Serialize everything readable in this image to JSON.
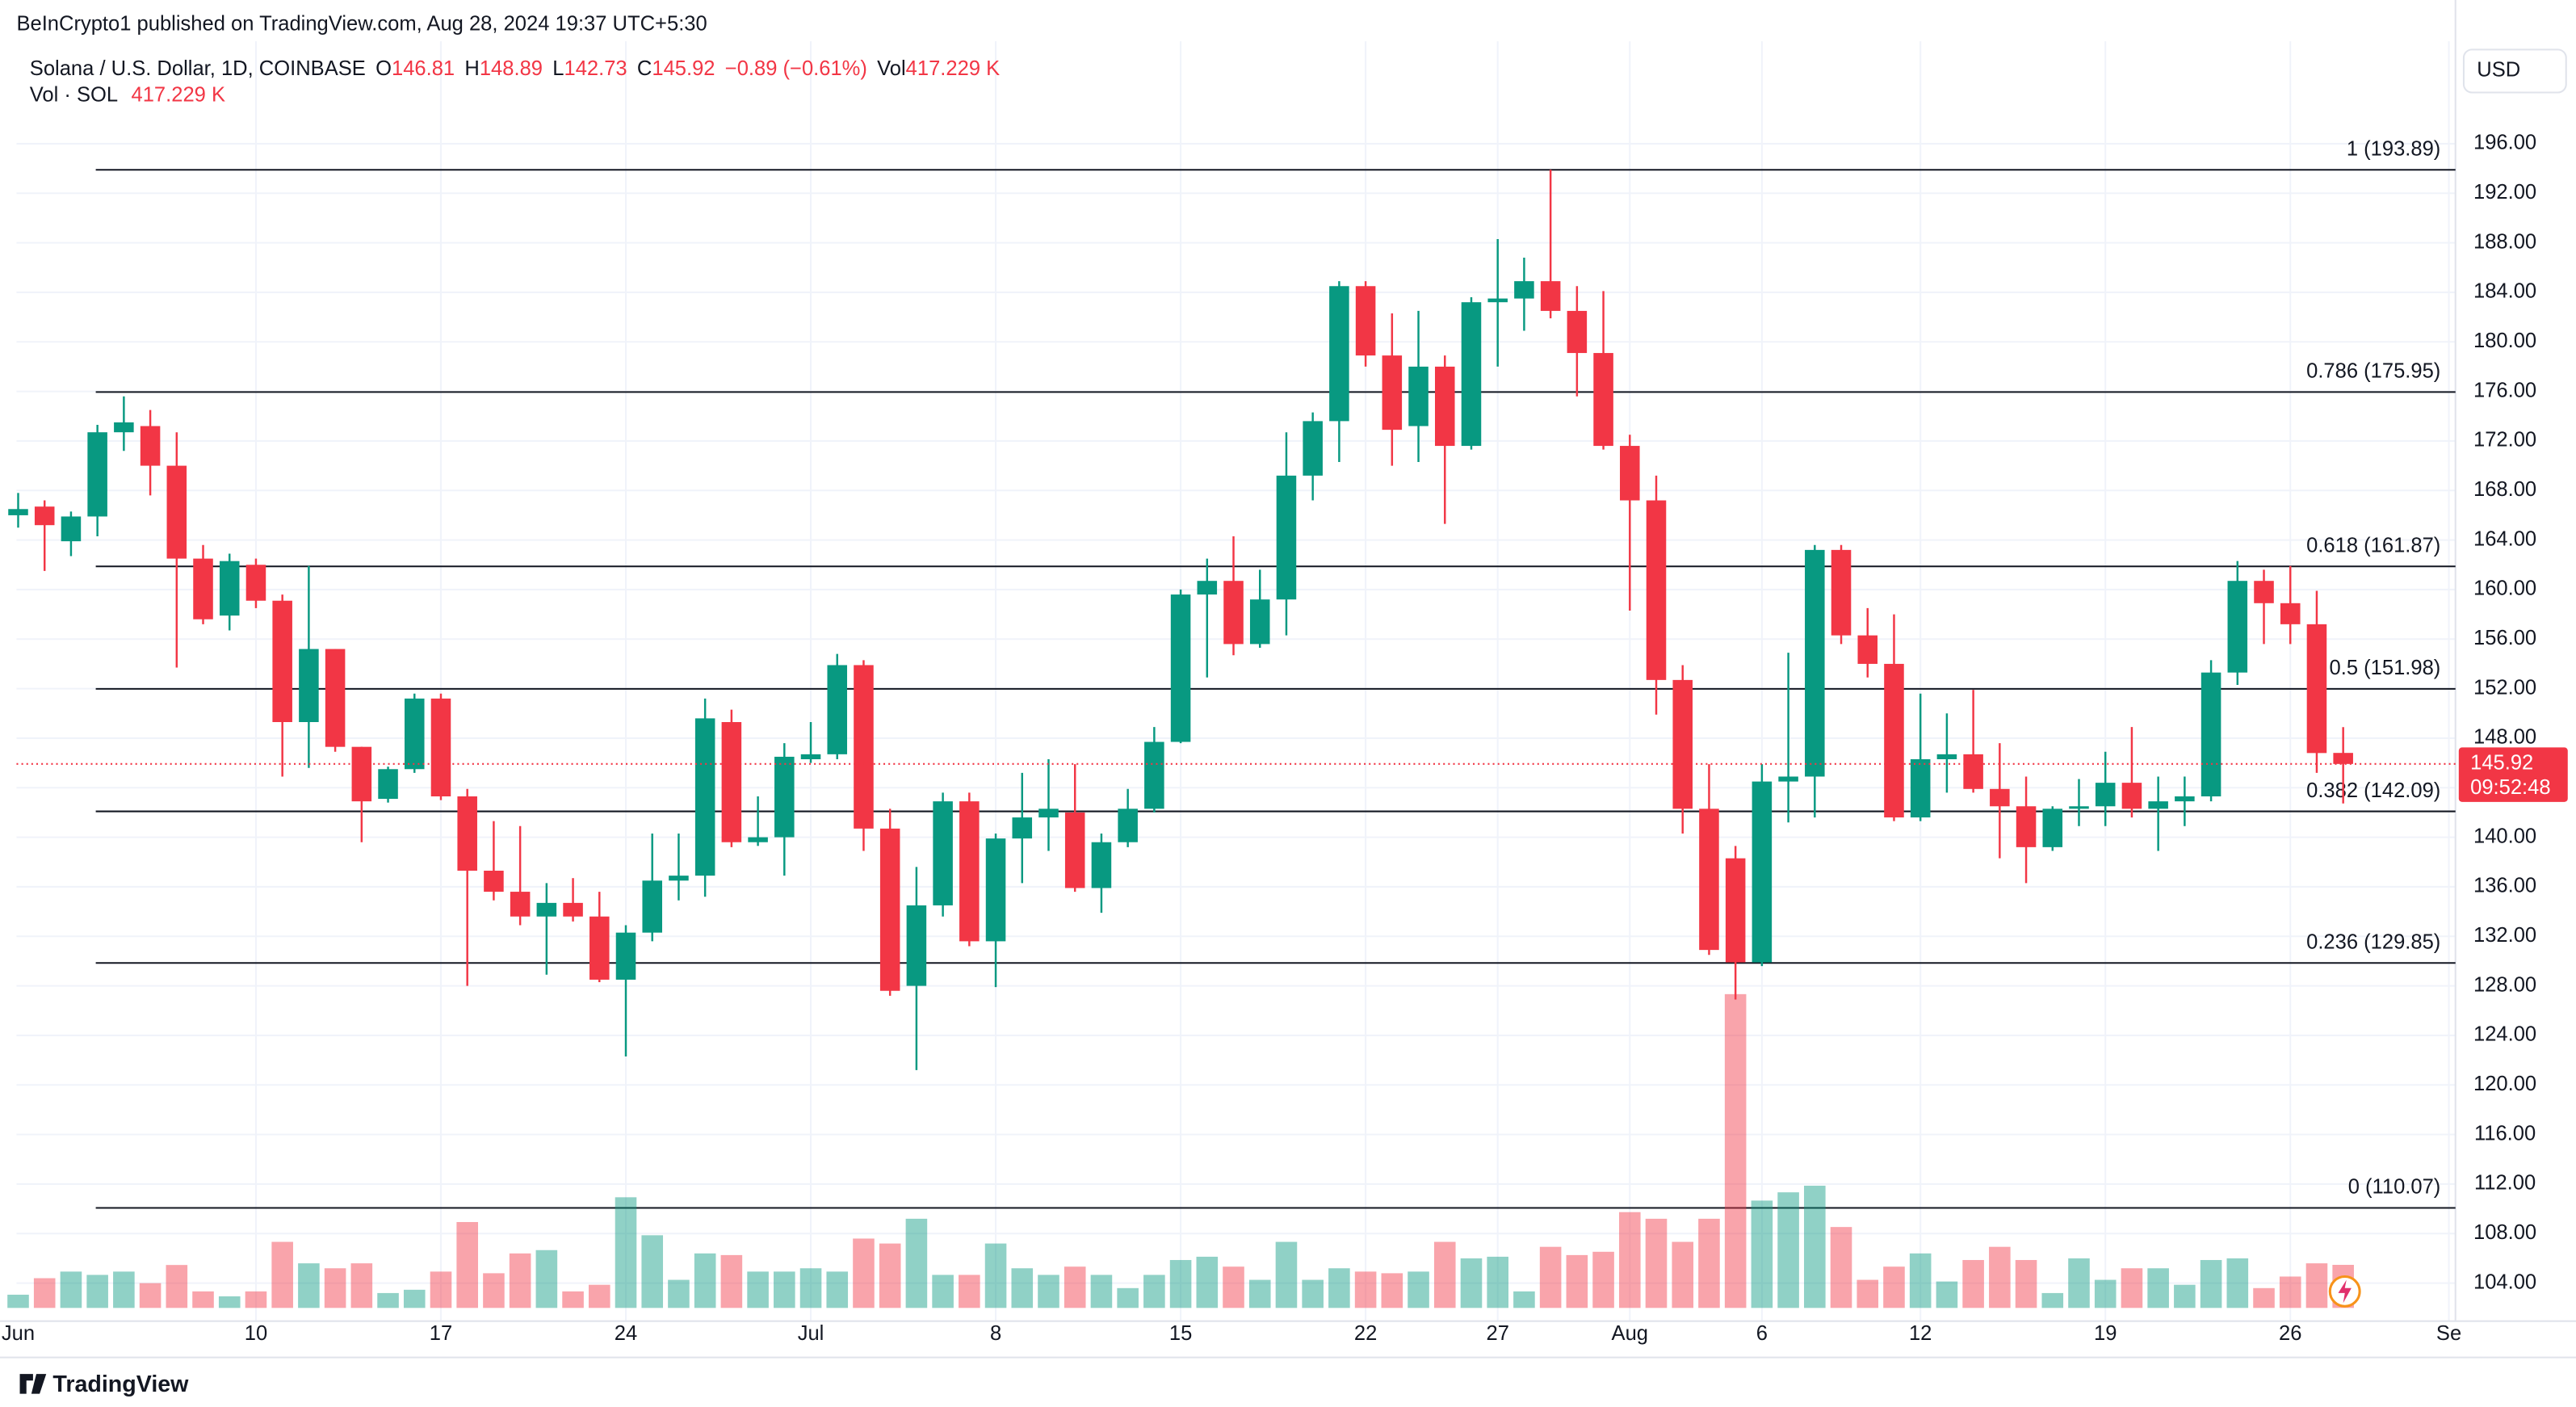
{
  "header": {
    "publisher": "BeInCrypto1 published on TradingView.com, Aug 28, 2024 19:37 UTC+5:30",
    "symbol": "Solana / U.S. Dollar, 1D, COINBASE",
    "o": "O",
    "h": "H",
    "l": "L",
    "c": "C",
    "change": "−0.89 (−0.61%)",
    "vol": "Vol",
    "vol_value": "417.229 K",
    "vol_row": "Vol · SOL",
    "vol_row_value": "417.229 K"
  },
  "currency": "USD",
  "countdown": "09:52:48",
  "footer": "TradingView",
  "chart_data": {
    "type": "candlestick",
    "up_color": "#089981",
    "down_color": "#f23645",
    "grid": true,
    "categories": [
      "Jun",
      null,
      null,
      null,
      null,
      null,
      null,
      null,
      null,
      "10",
      null,
      null,
      null,
      null,
      null,
      null,
      "17",
      null,
      null,
      null,
      null,
      null,
      null,
      "24",
      null,
      null,
      null,
      null,
      null,
      null,
      "Jul",
      null,
      null,
      null,
      null,
      null,
      null,
      "8",
      null,
      null,
      null,
      null,
      null,
      null,
      "15",
      null,
      null,
      null,
      null,
      null,
      null,
      "22",
      null,
      null,
      null,
      null,
      "27",
      null,
      null,
      null,
      null,
      "Aug",
      null,
      null,
      null,
      null,
      "6",
      null,
      null,
      null,
      null,
      null,
      "12",
      null,
      null,
      null,
      null,
      null,
      null,
      "19",
      null,
      null,
      null,
      null,
      null,
      null,
      "26",
      null,
      null,
      null,
      null,
      null,
      "Se"
    ],
    "open": [
      166.0,
      166.7,
      163.9,
      165.9,
      172.7,
      173.2,
      170.0,
      162.5,
      157.9,
      162.0,
      159.1,
      149.3,
      155.2,
      147.3,
      143.1,
      145.5,
      151.2,
      143.3,
      137.3,
      135.6,
      133.6,
      134.7,
      133.6,
      128.5,
      132.3,
      136.5,
      136.9,
      149.3,
      139.6,
      140.0,
      146.3,
      146.7,
      153.9,
      140.7,
      128.0,
      134.5,
      142.9,
      131.6,
      139.9,
      141.6,
      142.0,
      135.9,
      139.6,
      142.3,
      147.7,
      159.6,
      160.7,
      155.6,
      159.2,
      169.2,
      173.6,
      184.5,
      178.9,
      173.2,
      178.0,
      171.6,
      183.2,
      183.5,
      184.9,
      182.5,
      179.1,
      171.6,
      167.2,
      152.7,
      142.3,
      138.3,
      129.9,
      144.5,
      144.9,
      163.2,
      156.3,
      154.0,
      141.6,
      146.3,
      146.7,
      143.9,
      142.5,
      139.2,
      142.3,
      142.5,
      144.4,
      142.3,
      142.9,
      143.3,
      153.3,
      160.7,
      158.9,
      157.2,
      146.81,
      null,
      null,
      null,
      null
    ],
    "high": [
      167.8,
      167.2,
      166.3,
      173.3,
      175.6,
      174.5,
      172.7,
      163.6,
      162.9,
      162.5,
      159.6,
      161.9,
      155.2,
      147.3,
      145.7,
      151.6,
      151.6,
      143.9,
      141.3,
      140.9,
      136.3,
      136.7,
      135.6,
      132.9,
      140.3,
      140.3,
      151.2,
      150.3,
      143.3,
      147.6,
      149.3,
      154.8,
      154.3,
      142.3,
      137.6,
      143.6,
      143.6,
      140.3,
      145.2,
      146.3,
      145.9,
      140.3,
      143.9,
      148.9,
      160.0,
      162.5,
      164.3,
      161.6,
      172.7,
      174.3,
      184.9,
      184.9,
      182.3,
      182.5,
      178.9,
      183.6,
      188.3,
      186.8,
      193.9,
      184.5,
      184.1,
      172.5,
      169.2,
      153.9,
      145.9,
      139.3,
      145.9,
      154.9,
      163.6,
      163.6,
      158.5,
      158.0,
      151.6,
      150.0,
      151.9,
      147.6,
      144.9,
      142.5,
      144.7,
      146.9,
      148.9,
      144.9,
      144.9,
      154.3,
      162.3,
      161.6,
      161.9,
      159.9,
      148.89,
      null,
      null,
      null,
      null
    ],
    "low": [
      165.0,
      161.5,
      162.7,
      164.3,
      171.2,
      167.6,
      153.7,
      157.2,
      156.7,
      158.5,
      144.9,
      145.6,
      146.9,
      139.6,
      142.8,
      145.2,
      143.0,
      128.0,
      134.9,
      132.9,
      128.9,
      133.2,
      128.3,
      122.3,
      131.6,
      134.9,
      135.2,
      139.2,
      139.3,
      136.9,
      146.0,
      146.3,
      138.9,
      127.2,
      121.2,
      133.6,
      131.2,
      127.9,
      136.3,
      138.9,
      135.6,
      133.9,
      139.2,
      142.0,
      147.6,
      152.9,
      154.7,
      155.3,
      156.3,
      167.2,
      170.3,
      178.0,
      170.0,
      170.3,
      165.3,
      171.3,
      178.0,
      180.9,
      181.9,
      175.6,
      171.3,
      158.3,
      149.9,
      140.3,
      130.5,
      126.9,
      129.6,
      141.2,
      141.6,
      155.6,
      152.9,
      141.3,
      141.3,
      143.6,
      143.6,
      138.3,
      136.3,
      138.9,
      140.9,
      140.9,
      141.6,
      138.9,
      140.9,
      142.9,
      152.3,
      155.6,
      155.6,
      145.2,
      142.73,
      null,
      null,
      null,
      null
    ],
    "close": [
      166.5,
      165.2,
      165.9,
      172.7,
      173.5,
      170.0,
      162.5,
      157.6,
      162.3,
      159.1,
      149.3,
      155.2,
      147.3,
      142.9,
      145.5,
      151.2,
      143.3,
      137.3,
      135.6,
      133.6,
      134.7,
      133.6,
      128.5,
      132.3,
      136.5,
      136.9,
      149.6,
      139.6,
      140.0,
      146.5,
      146.7,
      153.9,
      140.7,
      127.6,
      134.5,
      142.9,
      131.6,
      139.9,
      141.6,
      142.3,
      135.9,
      139.6,
      142.3,
      147.7,
      159.6,
      160.7,
      155.6,
      159.2,
      169.2,
      173.6,
      184.5,
      178.9,
      172.9,
      178.0,
      171.6,
      183.2,
      183.5,
      184.9,
      182.5,
      179.1,
      171.6,
      167.2,
      152.7,
      142.3,
      130.9,
      129.9,
      144.5,
      144.9,
      163.2,
      156.3,
      154.0,
      141.6,
      146.3,
      146.7,
      143.9,
      142.5,
      139.2,
      142.3,
      142.5,
      144.4,
      142.3,
      142.9,
      143.3,
      153.3,
      160.7,
      158.9,
      157.2,
      146.8,
      145.92,
      null,
      null,
      null,
      null
    ],
    "volume": [
      128,
      288,
      352,
      320,
      352,
      240,
      416,
      160,
      112,
      160,
      640,
      432,
      384,
      432,
      144,
      176,
      352,
      832,
      336,
      528,
      560,
      160,
      224,
      1072,
      704,
      272,
      528,
      512,
      352,
      352,
      384,
      352,
      672,
      624,
      864,
      320,
      320,
      624,
      384,
      320,
      400,
      320,
      192,
      320,
      464,
      496,
      400,
      272,
      640,
      272,
      384,
      352,
      336,
      352,
      640,
      480,
      496,
      160,
      592,
      512,
      544,
      928,
      864,
      640,
      864,
      3040,
      1040,
      1120,
      1184,
      784,
      272,
      400,
      528,
      256,
      464,
      592,
      464,
      144,
      480,
      272,
      384,
      384,
      224,
      464,
      480,
      192,
      304,
      432,
      417.229,
      null,
      null,
      null,
      null
    ],
    "ylim": [
      100.93,
      204.27
    ],
    "yticks": [
      {
        "value": 104,
        "label": "104.00"
      },
      {
        "value": 108,
        "label": "108.00"
      },
      {
        "value": 112,
        "label": "112.00"
      },
      {
        "value": 116,
        "label": "116.00"
      },
      {
        "value": 120,
        "label": "120.00"
      },
      {
        "value": 124,
        "label": "124.00"
      },
      {
        "value": 128,
        "label": "128.00"
      },
      {
        "value": 132,
        "label": "132.00"
      },
      {
        "value": 136,
        "label": "136.00"
      },
      {
        "value": 140,
        "label": "140.00"
      },
      {
        "value": 144,
        "label": "144.00"
      },
      {
        "value": 148,
        "label": "148.00"
      },
      {
        "value": 152,
        "label": "152.00"
      },
      {
        "value": 156,
        "label": "156.00"
      },
      {
        "value": 160,
        "label": "160.00"
      },
      {
        "value": 164,
        "label": "164.00"
      },
      {
        "value": 168,
        "label": "168.00"
      },
      {
        "value": 172,
        "label": "172.00"
      },
      {
        "value": 176,
        "label": "176.00"
      },
      {
        "value": 180,
        "label": "180.00"
      },
      {
        "value": 184,
        "label": "184.00"
      },
      {
        "value": 188,
        "label": "188.00"
      },
      {
        "value": 192,
        "label": "192.00"
      },
      {
        "value": 196,
        "label": "196.00"
      }
    ],
    "fib_levels": [
      {
        "value": 193.89,
        "label": "1 (193.89)"
      },
      {
        "value": 175.95,
        "label": "0.786 (175.95)"
      },
      {
        "value": 161.87,
        "label": "0.618 (161.87)"
      },
      {
        "value": 151.98,
        "label": "0.5 (151.98)"
      },
      {
        "value": 142.09,
        "label": "0.382 (142.09)"
      },
      {
        "value": 129.85,
        "label": "0.236 (129.85)"
      },
      {
        "value": 110.07,
        "label": "0 (110.07)"
      }
    ]
  }
}
